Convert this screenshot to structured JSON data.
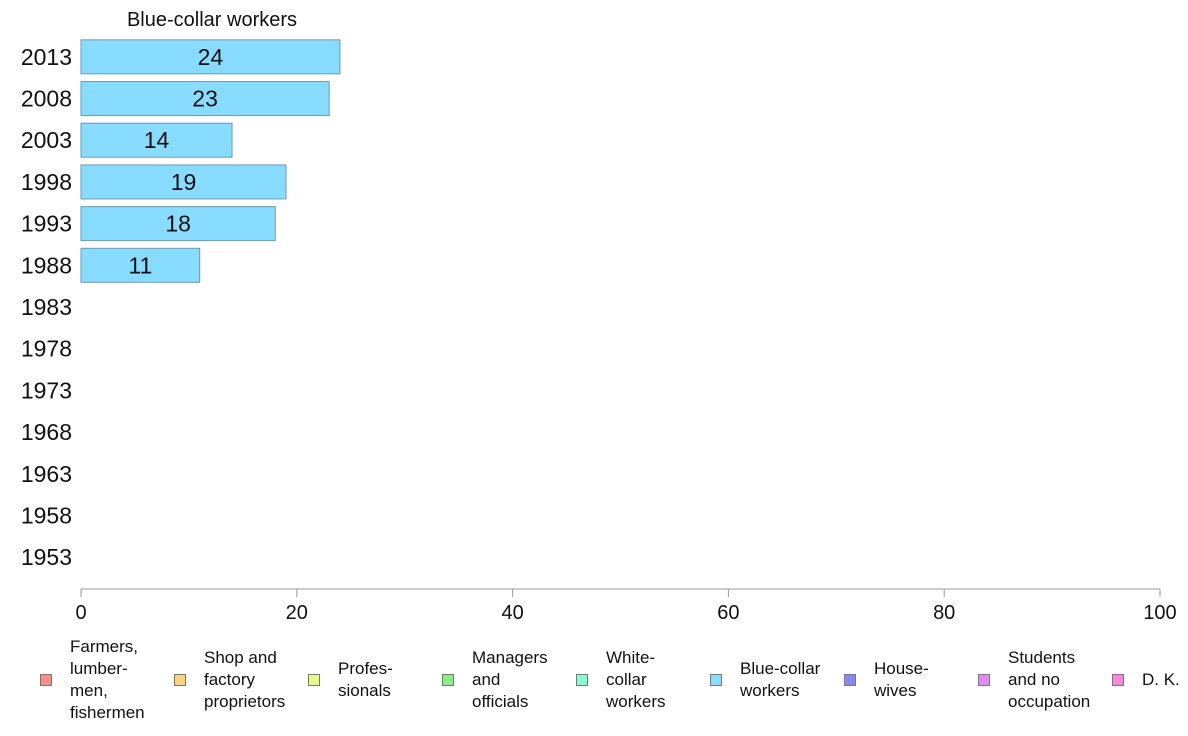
{
  "chart_data": {
    "type": "bar",
    "orientation": "horizontal",
    "panel_title": "Blue-collar workers",
    "categories": [
      "2013",
      "2008",
      "2003",
      "1998",
      "1993",
      "1988",
      "1983",
      "1978",
      "1973",
      "1968",
      "1963",
      "1958",
      "1953"
    ],
    "series": [
      {
        "name": "Blue-collar workers",
        "color": "#87dcff",
        "values": [
          24,
          23,
          14,
          19,
          18,
          11,
          null,
          null,
          null,
          null,
          null,
          null,
          null
        ]
      }
    ],
    "value_labels": [
      "24",
      "23",
      "14",
      "19",
      "18",
      "11"
    ],
    "xlim": [
      0,
      100
    ],
    "xticks": [
      "0",
      "20",
      "40",
      "60",
      "80",
      "100"
    ],
    "grid": false,
    "legend_position": "bottom",
    "legend": [
      {
        "label": "Farmers,\nlumber-\nmen,\nfishermen",
        "color": "#f88e86"
      },
      {
        "label": "Shop and\nfactory\nproprietors",
        "color": "#fbd27e"
      },
      {
        "label": "Profes-\nsionals",
        "color": "#e7f987"
      },
      {
        "label": "Managers\nand\nofficials",
        "color": "#86f087"
      },
      {
        "label": "White-\ncollar\nworkers",
        "color": "#88fbd3"
      },
      {
        "label": "Blue-collar\nworkers",
        "color": "#87dcff"
      },
      {
        "label": "House-\nwives",
        "color": "#8888f7"
      },
      {
        "label": "Students\nand no\noccupation",
        "color": "#e189fb"
      },
      {
        "label": "D. K.",
        "color": "#fa87dc"
      }
    ]
  }
}
